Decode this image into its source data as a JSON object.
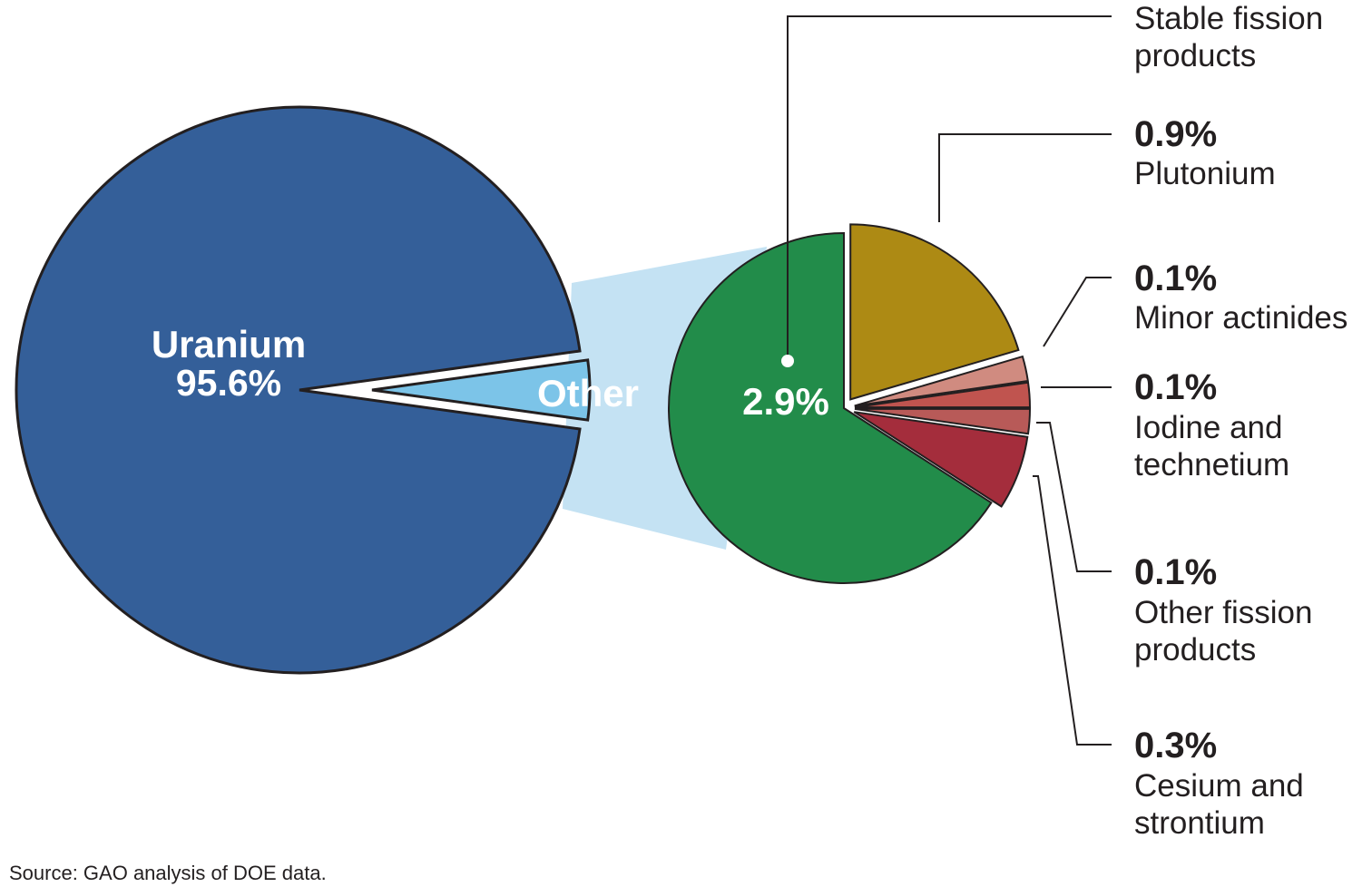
{
  "chart_data": {
    "type": "pie",
    "main_pie": {
      "slices": [
        {
          "label": "Uranium",
          "value": 95.6,
          "value_label": "95.6%",
          "color": "#345f99"
        },
        {
          "label": "Other",
          "value": 4.4,
          "color": "#7cc4e8"
        }
      ]
    },
    "breakdown_pie": {
      "parent": "Other",
      "slices": [
        {
          "label": "Stable fission products",
          "value": 2.9,
          "value_label": "2.9%",
          "color": "#228c4a"
        },
        {
          "label": "Plutonium",
          "value": 0.9,
          "value_label": "0.9%",
          "color": "#ad8a14"
        },
        {
          "label": "Minor actinides",
          "value": 0.1,
          "value_label": "0.1%",
          "color": "#d08b80"
        },
        {
          "label": "Iodine and technetium",
          "value": 0.1,
          "value_label": "0.1%",
          "color": "#c0544f"
        },
        {
          "label": "Other fission products",
          "value": 0.1,
          "value_label": "0.1%",
          "color": "#b85a58"
        },
        {
          "label": "Cesium and strontium",
          "value": 0.3,
          "value_label": "0.3%",
          "color": "#a42d3c"
        }
      ]
    },
    "connector_color": "#c4e2f3"
  },
  "source": "Source: GAO analysis of DOE data."
}
